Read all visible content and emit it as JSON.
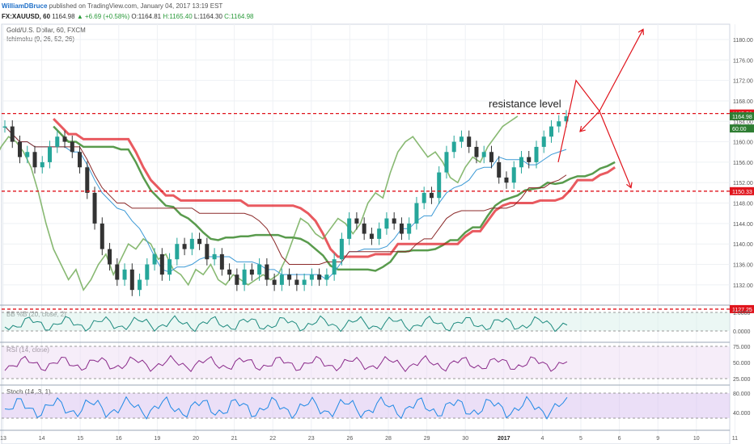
{
  "header": {
    "user": "WilliamDBruce",
    "published": "published on TradingView.com, January 04, 2017 13:19 EST",
    "symbol_line": {
      "ticker": "FX:XAUUSD, 60",
      "last": "1164.98",
      "change": "▲ +6.69 (+0.58%)",
      "open": "O:1164.81",
      "high": "H:1165.40",
      "low": "L:1164.30",
      "close": "C:1164.98"
    }
  },
  "panels": {
    "main_title": "Gold/U.S. Dollar, 60, FXCM",
    "ichimoku": "Ichimoku (9, 26, 52, 26)",
    "bb": "BB %B (20, close, 2)",
    "rsi": "RSI (14, close)",
    "stoch": "Stoch (14, 3, 1)"
  },
  "annotation": "resistance level",
  "colors": {
    "up": "#26a69a",
    "down": "#333333",
    "red_line": "#e0141c",
    "green_span": "#6aa84f",
    "bb_line": "#1d8a7e",
    "rsi_line": "#8a2a8a",
    "stoch_k": "#1e88e5",
    "stoch_d": "#e53935",
    "axis_label_red": "#e0141c",
    "axis_label_green": "#2e7d32"
  },
  "chart_data": {
    "type": "candlestick",
    "main_y_ticks": [
      1132,
      1136,
      1140,
      1144,
      1148,
      1152,
      1156,
      1160,
      1164,
      1168,
      1172,
      1176,
      1180
    ],
    "ylim": [
      1128.5,
      1183
    ],
    "x_ticks": [
      "13",
      "14",
      "15",
      "16",
      "19",
      "20",
      "21",
      "22",
      "23",
      "26",
      "28",
      "29",
      "30",
      "2017",
      "4",
      "5",
      "6",
      "9",
      "10",
      "11",
      "19"
    ],
    "horizontal_levels": [
      {
        "value": 1165.52,
        "label": "1165.52"
      },
      {
        "value": 1150.33,
        "label": "1150.33"
      },
      {
        "value": 1127.25,
        "label": "1127.25"
      }
    ],
    "price_tags": [
      {
        "value": 1164.98,
        "label": "1164.98",
        "color": "green"
      },
      {
        "value": 1162.6,
        "label": "60:00",
        "color": "green"
      }
    ],
    "closes": [
      1163,
      1160,
      1157,
      1158,
      1155,
      1156,
      1159,
      1161,
      1160,
      1158,
      1155,
      1150,
      1144,
      1139,
      1136,
      1133,
      1135,
      1131,
      1133,
      1136,
      1138,
      1134,
      1137,
      1140,
      1139,
      1141,
      1140,
      1137,
      1138,
      1135,
      1134,
      1132,
      1135,
      1134,
      1136,
      1133,
      1132,
      1134,
      1133,
      1132,
      1133,
      1134,
      1133,
      1134,
      1137,
      1141,
      1145,
      1144,
      1142,
      1141,
      1143,
      1145,
      1144,
      1142,
      1144,
      1148,
      1150,
      1149,
      1154,
      1158,
      1160,
      1161,
      1159,
      1157,
      1158,
      1156,
      1153,
      1152,
      1155,
      1157,
      1156,
      1159,
      1161,
      1163,
      1164,
      1165
    ],
    "projection_path": [
      [
        690,
        1156
      ],
      [
        712,
        1172
      ],
      [
        741,
        1166
      ],
      [
        717,
        1162
      ]
    ],
    "projection_path_2": [
      [
        741,
        1166
      ],
      [
        795,
        1182
      ]
    ],
    "projection_path_3": [
      [
        741,
        1166
      ],
      [
        780,
        1151
      ]
    ],
    "bb_ticks": [
      1.0,
      0.0
    ],
    "rsi_ticks": [
      75.0,
      50.0,
      25.0
    ],
    "stoch_ticks": [
      80.0,
      40.0
    ]
  }
}
